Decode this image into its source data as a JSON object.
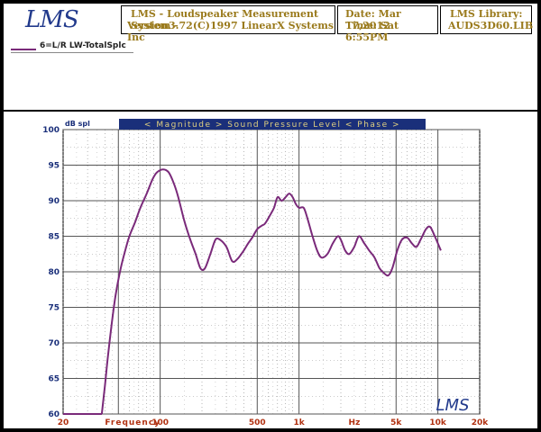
{
  "header": {
    "logo": "LMS",
    "title_line1": "LMS - Loudspeaker Measurement System -",
    "title_line2": "Version3.72(C)1997 LinearX Systems Inc",
    "date": "Date: Mar 17,2012",
    "time": "Time: Sat  6:55PM",
    "library_label": "LMS Library:",
    "library_file": "AUDS3D60.LIB"
  },
  "legend": {
    "label": "6=L/R LW-TotalSplc"
  },
  "chart_data": {
    "type": "line",
    "title": "< Magnitude >    Sound Pressure Level          < Phase >",
    "ylabel": "dB spl",
    "xlabel": "Frequency",
    "xscale": "log",
    "xlim": [
      20,
      20000
    ],
    "ylim": [
      60,
      100
    ],
    "grid": true,
    "yticks": [
      60,
      65,
      70,
      75,
      80,
      85,
      90,
      95,
      100
    ],
    "xtick_labels": [
      {
        "x": 20,
        "label": "20"
      },
      {
        "x": 40,
        "label": "Frequency"
      },
      {
        "x": 100,
        "label": "100"
      },
      {
        "x": 500,
        "label": "500"
      },
      {
        "x": 1000,
        "label": "1k"
      },
      {
        "x": 2500,
        "label": "Hz"
      },
      {
        "x": 5000,
        "label": "5k"
      },
      {
        "x": 10000,
        "label": "10k"
      },
      {
        "x": 20000,
        "label": "20k"
      }
    ],
    "watermark": "LMS",
    "series": [
      {
        "name": "6=L/R LW-TotalSplc",
        "color": "#7a2a7a",
        "points": [
          [
            38,
            60
          ],
          [
            40,
            64
          ],
          [
            42,
            68
          ],
          [
            45,
            73
          ],
          [
            48,
            77
          ],
          [
            52,
            80.5
          ],
          [
            56,
            83
          ],
          [
            60,
            85
          ],
          [
            66,
            87
          ],
          [
            72,
            89
          ],
          [
            80,
            91
          ],
          [
            88,
            93
          ],
          [
            95,
            94
          ],
          [
            105,
            94.4
          ],
          [
            115,
            94
          ],
          [
            125,
            92.5
          ],
          [
            135,
            90.5
          ],
          [
            150,
            87
          ],
          [
            165,
            84.5
          ],
          [
            180,
            82.5
          ],
          [
            195,
            80.5
          ],
          [
            210,
            80.5
          ],
          [
            230,
            82.5
          ],
          [
            250,
            84.5
          ],
          [
            270,
            84.5
          ],
          [
            300,
            83.5
          ],
          [
            330,
            81.5
          ],
          [
            360,
            81.8
          ],
          [
            400,
            83
          ],
          [
            430,
            84
          ],
          [
            460,
            84.8
          ],
          [
            500,
            86
          ],
          [
            540,
            86.5
          ],
          [
            570,
            86.8
          ],
          [
            620,
            88
          ],
          [
            660,
            89
          ],
          [
            700,
            90.5
          ],
          [
            750,
            90
          ],
          [
            800,
            90.5
          ],
          [
            850,
            91
          ],
          [
            900,
            90.5
          ],
          [
            950,
            89.5
          ],
          [
            1000,
            89
          ],
          [
            1080,
            89
          ],
          [
            1150,
            87.5
          ],
          [
            1250,
            85
          ],
          [
            1350,
            83
          ],
          [
            1450,
            82
          ],
          [
            1600,
            82.5
          ],
          [
            1750,
            84
          ],
          [
            1900,
            85
          ],
          [
            2000,
            84.5
          ],
          [
            2150,
            83
          ],
          [
            2300,
            82.5
          ],
          [
            2500,
            83.5
          ],
          [
            2700,
            85
          ],
          [
            2950,
            84
          ],
          [
            3200,
            83
          ],
          [
            3500,
            82
          ],
          [
            3800,
            80.5
          ],
          [
            4100,
            79.8
          ],
          [
            4400,
            79.5
          ],
          [
            4700,
            80.5
          ],
          [
            5100,
            83
          ],
          [
            5500,
            84.5
          ],
          [
            6000,
            84.8
          ],
          [
            6500,
            84
          ],
          [
            7000,
            83.5
          ],
          [
            7500,
            84.5
          ],
          [
            8200,
            86
          ],
          [
            8800,
            86.3
          ],
          [
            9500,
            85
          ],
          [
            10500,
            83
          ]
        ]
      }
    ]
  }
}
